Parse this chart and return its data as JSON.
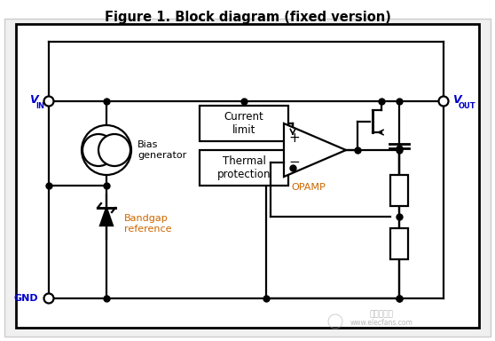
{
  "title": "Figure 1. Block diagram (fixed version)",
  "title_fontsize": 10.5,
  "bg_color": "#ffffff",
  "line_color": "#000000",
  "label_bias": "Bias\ngenerator",
  "label_bandgap": "Bandgap\nreference",
  "label_current": "Current\nlimit",
  "label_thermal": "Thermal\nprotection",
  "label_opamp": "OPAMP",
  "blue_color": "#0000cc",
  "orange_color": "#cc6600"
}
